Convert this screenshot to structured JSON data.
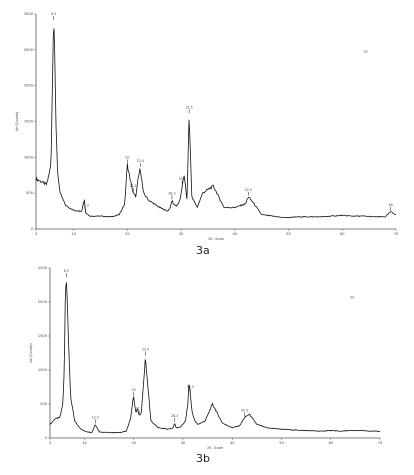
{
  "chart_data": [
    {
      "type": "line",
      "panel_label": "3a",
      "corner_tag": "2a",
      "ylabel": "Lin (Counts)",
      "xlabel": "2θ - Scale",
      "xlim": [
        3,
        70
      ],
      "ylim": [
        0,
        3000
      ],
      "x_ticks": [
        3,
        10,
        20,
        30,
        40,
        50,
        60,
        70
      ],
      "y_ticks": [
        0,
        500,
        1000,
        1500,
        2000,
        2500,
        3000
      ],
      "peak_markers": [
        6.3,
        12.2,
        20.0,
        21.1,
        22.4,
        28.3,
        30.2,
        31.5,
        42.5,
        69.0
      ],
      "series": [
        {
          "x": [
            3,
            5,
            5.8,
            6.0,
            6.2,
            6.3,
            6.5,
            6.7,
            7.0,
            7.5,
            8.5,
            10,
            11.5,
            12.0,
            12.2,
            12.4,
            13,
            15,
            17,
            18.5,
            19.5,
            20.0,
            20.5,
            21.1,
            21.6,
            22.0,
            22.4,
            23.0,
            24,
            26,
            27.5,
            28.0,
            28.3,
            28.6,
            29.2,
            29.8,
            30.2,
            30.6,
            31.1,
            31.5,
            32,
            33,
            34,
            36,
            38,
            40,
            42,
            42.5,
            43.3,
            45,
            47,
            48,
            49,
            50,
            52,
            54,
            56,
            58,
            60,
            62,
            64,
            66,
            68,
            69,
            70
          ],
          "y": [
            700,
            620,
            900,
            1800,
            2700,
            2900,
            2500,
            1500,
            800,
            500,
            330,
            260,
            250,
            420,
            230,
            220,
            180,
            180,
            170,
            200,
            350,
            900,
            700,
            500,
            450,
            700,
            850,
            500,
            400,
            300,
            250,
            300,
            400,
            350,
            320,
            400,
            600,
            750,
            400,
            1600,
            450,
            300,
            500,
            600,
            300,
            300,
            350,
            450,
            380,
            200,
            180,
            170,
            160,
            160,
            170,
            170,
            170,
            180,
            190,
            180,
            180,
            170,
            170,
            240,
            200
          ]
        }
      ]
    },
    {
      "type": "line",
      "panel_label": "3b",
      "corner_tag": "2b",
      "ylabel": "Lin (Counts)",
      "xlabel": "2θ - Scale",
      "xlim": [
        3,
        70
      ],
      "ylim": [
        0,
        2500
      ],
      "x_ticks": [
        3,
        10,
        20,
        30,
        40,
        50,
        60,
        70
      ],
      "y_ticks": [
        0,
        500,
        1000,
        1500,
        2000,
        2500
      ],
      "peak_markers": [
        6.3,
        12.2,
        20.0,
        21.1,
        22.4,
        28.3,
        31.5,
        42.5
      ],
      "series": [
        {
          "x": [
            3,
            4,
            5,
            5.6,
            5.9,
            6.1,
            6.3,
            6.5,
            6.8,
            7.2,
            8,
            9,
            10,
            11.5,
            12.2,
            13,
            15,
            17,
            18.5,
            19.4,
            19.8,
            20.0,
            20.4,
            20.8,
            21.1,
            21.5,
            21.9,
            22.4,
            22.8,
            23.5,
            25,
            27,
            28.0,
            28.3,
            28.6,
            29.5,
            30.5,
            31.0,
            31.2,
            31.5,
            31.8,
            32.4,
            33,
            34.5,
            36,
            38,
            40,
            41.5,
            42.5,
            43.5,
            45,
            47,
            50,
            52,
            55,
            58,
            60,
            62,
            64,
            66,
            68,
            70
          ],
          "y": [
            200,
            280,
            300,
            500,
            1000,
            2100,
            2350,
            2100,
            1300,
            600,
            250,
            150,
            100,
            80,
            200,
            90,
            80,
            80,
            100,
            300,
            550,
            600,
            380,
            420,
            330,
            350,
            700,
            1200,
            800,
            250,
            150,
            130,
            150,
            220,
            150,
            160,
            250,
            500,
            800,
            650,
            400,
            250,
            200,
            250,
            500,
            220,
            150,
            180,
            300,
            350,
            200,
            150,
            130,
            120,
            110,
            100,
            110,
            100,
            110,
            110,
            100,
            100
          ]
        }
      ]
    }
  ]
}
